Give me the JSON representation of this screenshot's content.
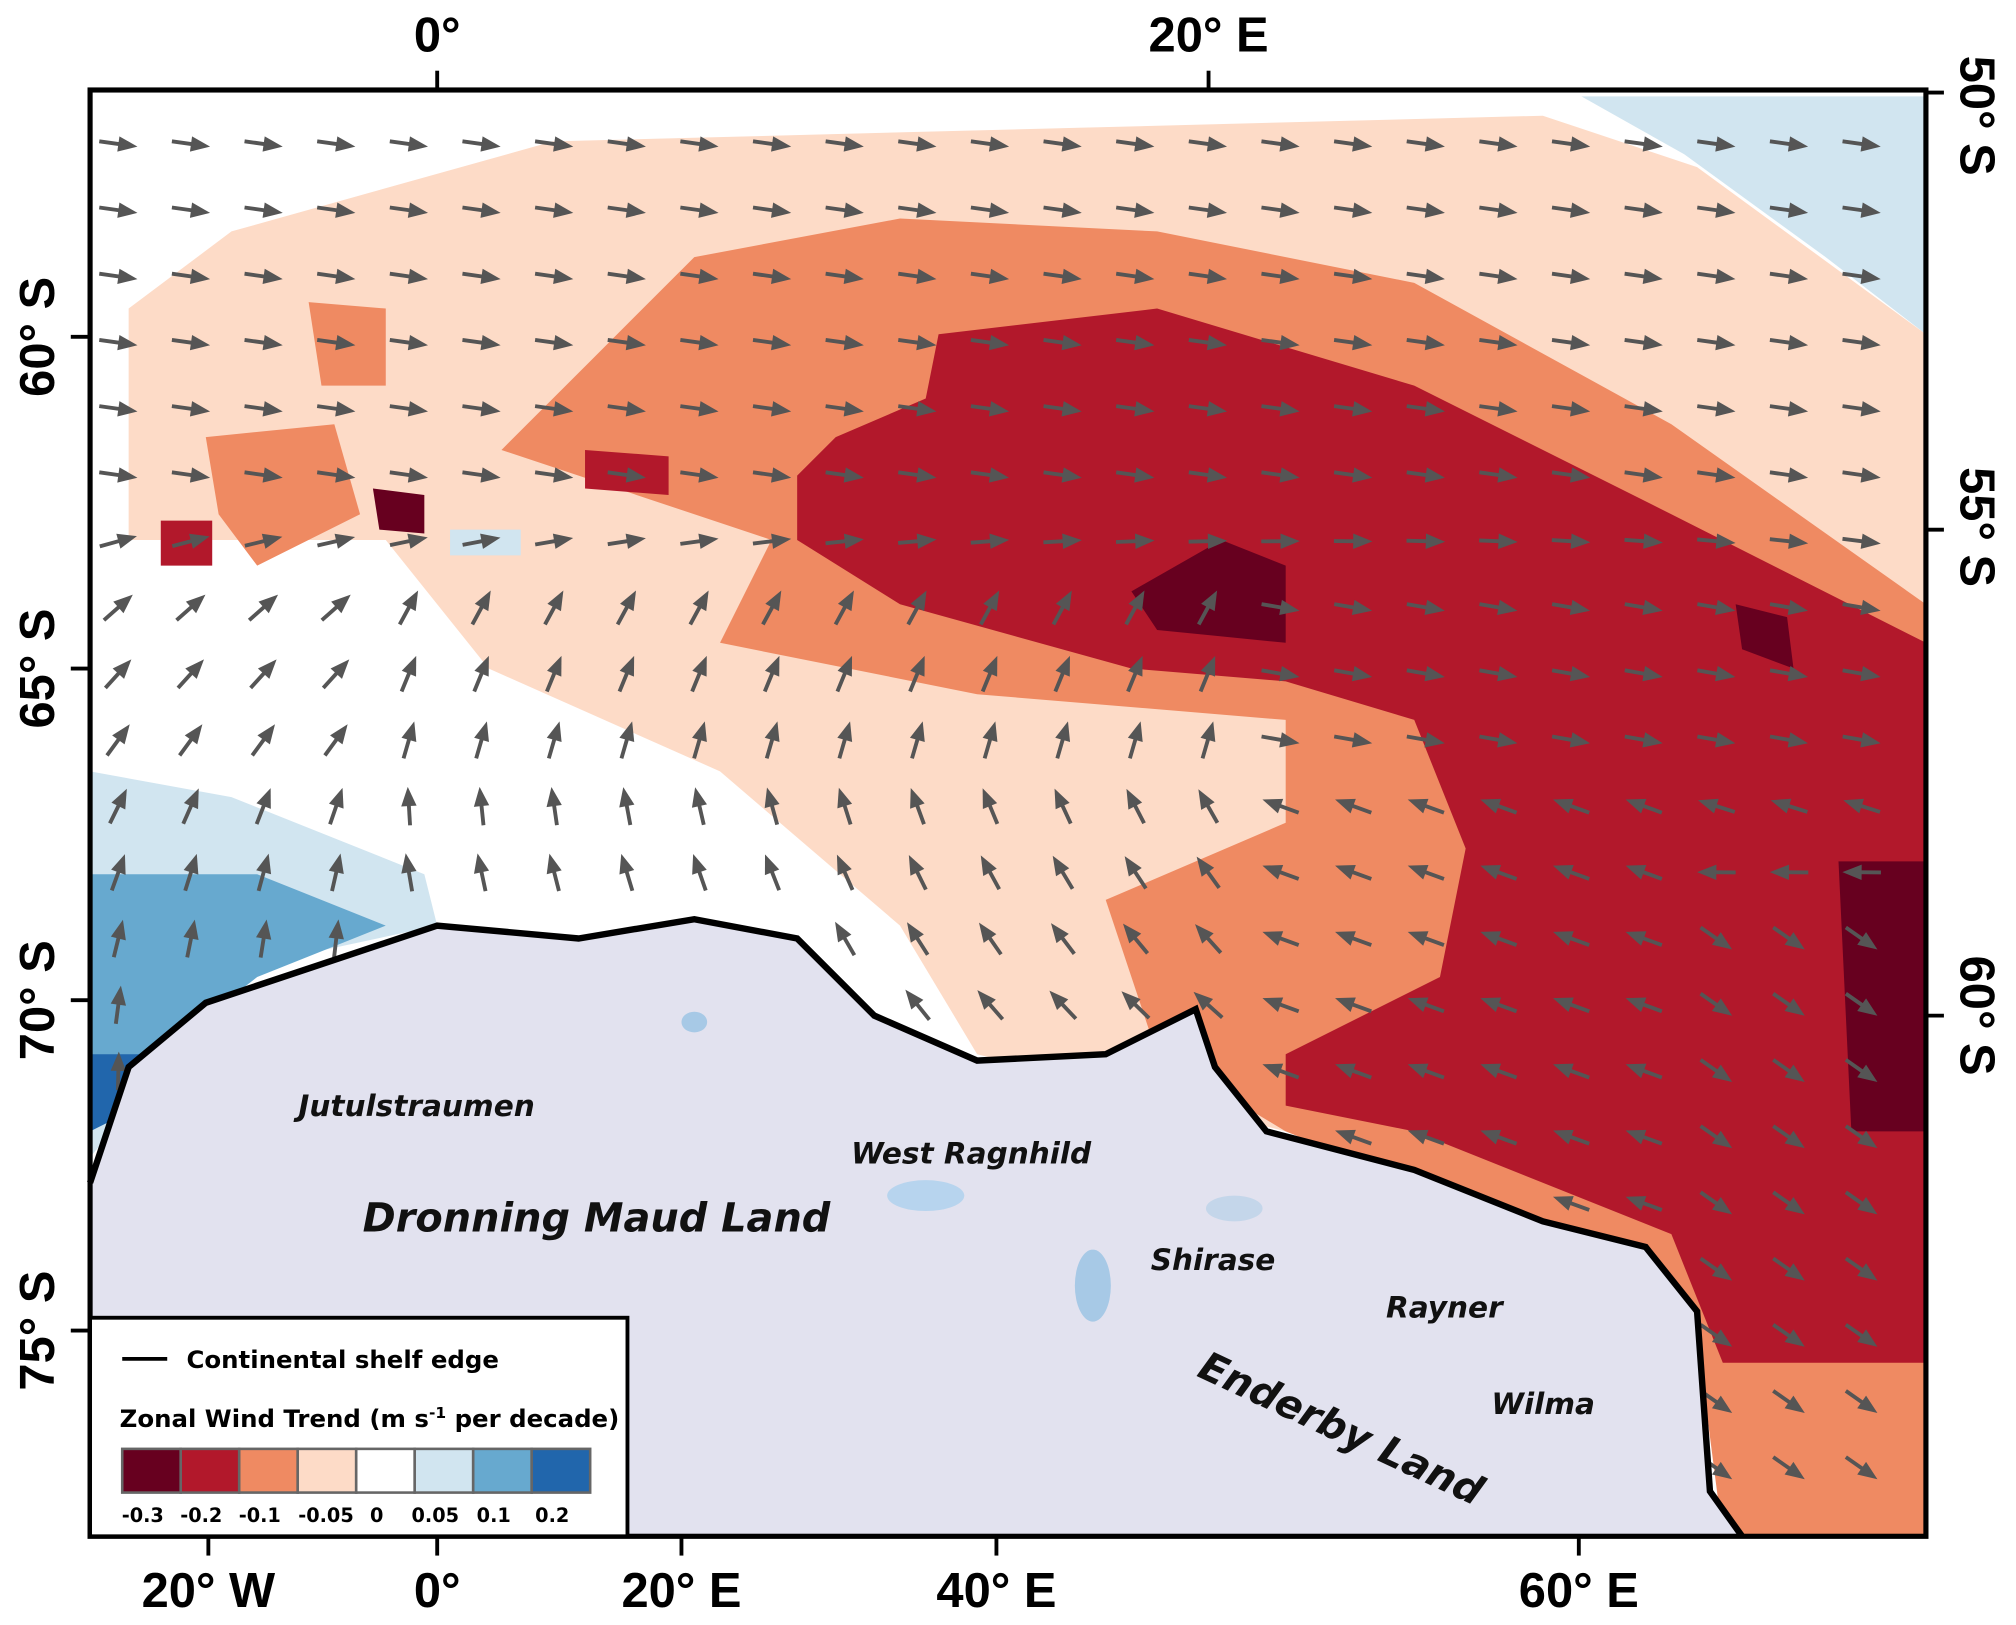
{
  "map": {
    "top_axis_labels": [
      "0°",
      "20° E"
    ],
    "left_axis_labels": [
      "60° S",
      "65° S",
      "70° S",
      "75° S"
    ],
    "right_axis_labels": [
      "50° S",
      "55° S",
      "60° S"
    ],
    "bottom_axis_labels": [
      "20° W",
      "0°",
      "20° E",
      "40° E",
      "60° E"
    ],
    "place_labels": [
      "Jutulstraumen",
      "West Ragnhild",
      "Dronning Maud Land",
      "Shirase",
      "Rayner",
      "Enderby Land",
      "Wilma"
    ],
    "legend": {
      "line_label": "Continental shelf edge",
      "title": {
        "text": "Zonal Wind Trend (m s",
        "superscript": "-1",
        "suffix": " per decade)"
      },
      "bins": [
        {
          "label": "-0.3",
          "color": "#67001f"
        },
        {
          "label": "-0.2",
          "color": "#b2182b"
        },
        {
          "label": "-0.1",
          "color": "#ef8a62"
        },
        {
          "label": "-0.05",
          "color": "#fddbc7"
        },
        {
          "label": "0",
          "color": "#ffffff"
        },
        {
          "label": "0.05",
          "color": "#d1e5f0"
        },
        {
          "label": "0.1",
          "color": "#67a9cf"
        },
        {
          "label": "0.2",
          "color": "#2166ac"
        }
      ]
    }
  }
}
